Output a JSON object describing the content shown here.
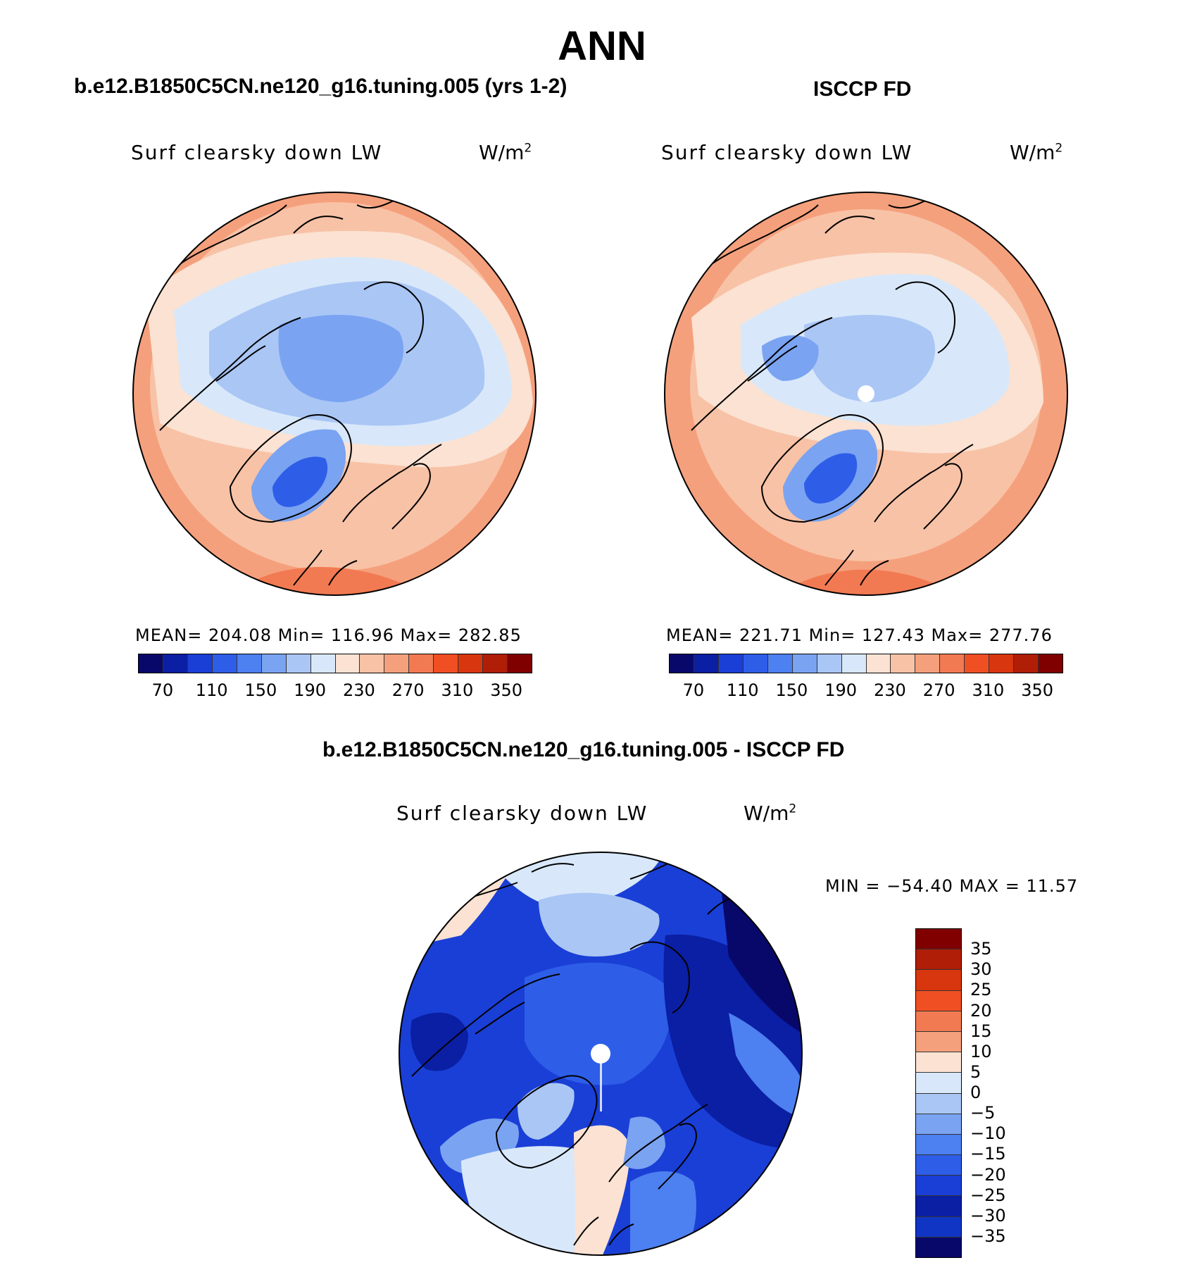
{
  "figure_title": "ANN",
  "top_left": {
    "title": "b.e12.B1850C5CN.ne120_g16.tuning.005 (yrs 1-2)",
    "variable": "Surf clearsky down LW",
    "units": "W/m",
    "units_sup": "2",
    "stats": "MEAN= 204.08   Min= 116.96   Max= 282.85"
  },
  "top_right": {
    "title": "ISCCP FD",
    "variable": "Surf clearsky down LW",
    "units": "W/m",
    "units_sup": "2",
    "stats": "MEAN= 221.71   Min= 127.43   Max= 277.76"
  },
  "bottom": {
    "title": "b.e12.B1850C5CN.ne120_g16.tuning.005 - ISCCP FD",
    "variable": "Surf clearsky down LW",
    "units": "W/m",
    "units_sup": "2",
    "minmax": "MIN = −54.40 MAX =   11.57"
  },
  "abs_colorbar": {
    "colors": [
      "#08086b",
      "#0a1fa3",
      "#1a3fd6",
      "#2e5ee8",
      "#4d80f0",
      "#7aa3f2",
      "#aac6f5",
      "#d8e8fa",
      "#fbe2d2",
      "#f8c2a6",
      "#f5a07c",
      "#f27a52",
      "#f04f24",
      "#d8360f",
      "#b01e08",
      "#800000"
    ],
    "tick_labels": [
      "70",
      "110",
      "150",
      "190",
      "230",
      "270",
      "310",
      "350"
    ]
  },
  "diff_colorbar": {
    "colors": [
      "#800000",
      "#b01e08",
      "#d8360f",
      "#f04f24",
      "#f27a52",
      "#f5a07c",
      "#fbe2d2",
      "#d8e8fa",
      "#aac6f5",
      "#7aa3f2",
      "#4d80f0",
      "#2e5ee8",
      "#1a3fd6",
      "#0a1fa3",
      "#1035c4",
      "#08086b"
    ],
    "tick_labels": [
      "35",
      "30",
      "25",
      "20",
      "15",
      "10",
      "5",
      "0",
      "−5",
      "−10",
      "−15",
      "−20",
      "−25",
      "−30",
      "−35"
    ]
  }
}
